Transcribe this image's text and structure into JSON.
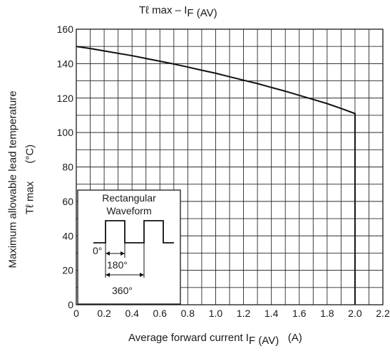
{
  "chart_data": {
    "type": "line",
    "title": {
      "main": "Tℓ max – I",
      "sub": "F (AV)"
    },
    "xlabel": {
      "main": "Average forward current   I",
      "sub": "F (AV)",
      "unit": "(A)"
    },
    "ylabel": {
      "line1": "Maximum allowable lead temperature",
      "line2_name": "Tℓ max",
      "line2_unit": "(°C)"
    },
    "xlim": [
      0,
      2.2
    ],
    "ylim": [
      0,
      160
    ],
    "x_ticks": [
      "0",
      "0.2",
      "0.4",
      "0.6",
      "0.8",
      "1.0",
      "1.2",
      "1.4",
      "1.6",
      "1.8",
      "2.0",
      "2.2"
    ],
    "y_ticks": [
      "0",
      "20",
      "40",
      "60",
      "80",
      "100",
      "120",
      "140",
      "160"
    ],
    "grid": true,
    "grid_minor_step": {
      "x": 0.1,
      "y": 10
    },
    "series": [
      {
        "x": [
          0,
          0.1,
          0.2,
          0.3,
          0.4,
          0.5,
          0.6,
          0.7,
          0.8,
          0.9,
          1.0,
          1.1,
          1.2,
          1.3,
          1.4,
          1.5,
          1.6,
          1.7,
          1.8,
          1.9,
          2.0,
          2.0
        ],
        "y": [
          150,
          148.8,
          147.4,
          146,
          144.6,
          143,
          141.4,
          139.8,
          138,
          136.2,
          134.4,
          132.4,
          130.4,
          128.4,
          126.2,
          124,
          121.6,
          119.2,
          116.8,
          114,
          111,
          0
        ]
      }
    ],
    "inset": {
      "title_line1": "Rectangular",
      "title_line2": "Waveform",
      "label_start": "0°",
      "label_on": "180°",
      "label_period": "360°"
    }
  }
}
